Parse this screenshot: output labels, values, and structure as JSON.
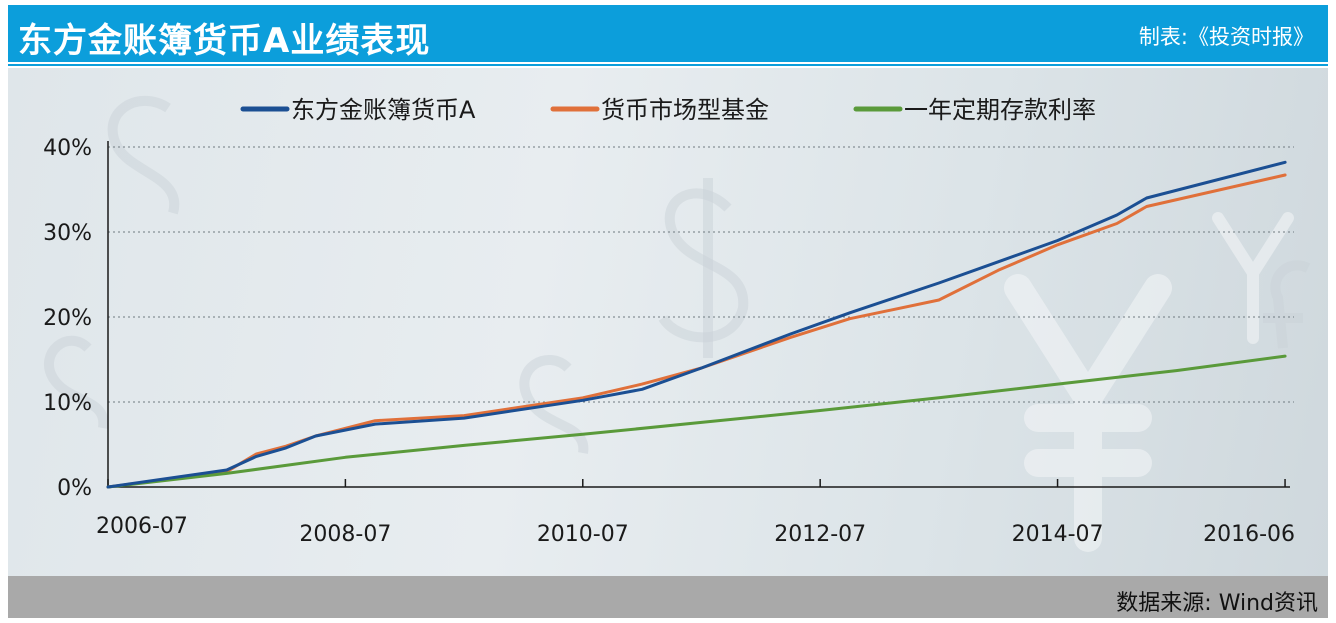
{
  "header": {
    "title": "东方金账簿货币A业绩表现",
    "credit": "制表:《投资时报》"
  },
  "footer": {
    "source": "数据来源: Wind资讯"
  },
  "colors": {
    "header_bg": "#0c9edb",
    "footer_bg": "#a9a9a9",
    "series_fund": "#1b4f93",
    "series_mmf": "#e0703a",
    "series_deposit": "#5a9a3a"
  },
  "chart_data": {
    "type": "line",
    "title": "东方金账簿货币A业绩表现",
    "xlabel": "",
    "ylabel": "",
    "x_tick_labels": [
      "2006-07",
      "2008-07",
      "2010-07",
      "2012-07",
      "2014-07",
      "2016-06"
    ],
    "y_tick_labels": [
      "0%",
      "10%",
      "20%",
      "30%",
      "40%"
    ],
    "ylim": [
      0,
      40
    ],
    "grid": "horizontal dotted",
    "legend_position": "top",
    "series": [
      {
        "name": "东方金账簿货币A",
        "color": "#1b4f93",
        "points": [
          [
            "2006-07",
            0.0
          ],
          [
            "2007-07",
            2.0
          ],
          [
            "2007-10",
            3.6
          ],
          [
            "2008-01",
            4.6
          ],
          [
            "2008-04",
            6.0
          ],
          [
            "2008-10",
            7.4
          ],
          [
            "2009-07",
            8.1
          ],
          [
            "2010-07",
            10.2
          ],
          [
            "2011-01",
            11.5
          ],
          [
            "2011-07",
            14.0
          ],
          [
            "2012-04",
            18.0
          ],
          [
            "2012-10",
            20.5
          ],
          [
            "2013-07",
            24.0
          ],
          [
            "2014-01",
            26.5
          ],
          [
            "2014-07",
            29.0
          ],
          [
            "2015-01",
            32.0
          ],
          [
            "2015-04",
            34.0
          ],
          [
            "2016-06",
            38.2
          ]
        ]
      },
      {
        "name": "货币市场型基金",
        "color": "#e0703a",
        "points": [
          [
            "2006-07",
            0.0
          ],
          [
            "2007-07",
            1.8
          ],
          [
            "2007-10",
            3.9
          ],
          [
            "2008-01",
            4.8
          ],
          [
            "2008-04",
            6.0
          ],
          [
            "2008-10",
            7.8
          ],
          [
            "2009-07",
            8.4
          ],
          [
            "2010-07",
            10.5
          ],
          [
            "2011-01",
            12.1
          ],
          [
            "2011-07",
            14.0
          ],
          [
            "2012-04",
            17.6
          ],
          [
            "2012-10",
            19.8
          ],
          [
            "2013-07",
            22.0
          ],
          [
            "2014-01",
            25.5
          ],
          [
            "2014-07",
            28.5
          ],
          [
            "2015-01",
            31.0
          ],
          [
            "2015-04",
            33.0
          ],
          [
            "2016-06",
            36.7
          ]
        ]
      },
      {
        "name": "一年定期存款利率",
        "color": "#5a9a3a",
        "points": [
          [
            "2006-07",
            0.0
          ],
          [
            "2007-07",
            1.6
          ],
          [
            "2008-07",
            3.5
          ],
          [
            "2009-07",
            4.9
          ],
          [
            "2010-07",
            6.2
          ],
          [
            "2011-07",
            7.6
          ],
          [
            "2012-07",
            9.0
          ],
          [
            "2013-07",
            10.5
          ],
          [
            "2014-07",
            12.1
          ],
          [
            "2015-07",
            13.7
          ],
          [
            "2016-06",
            15.4
          ]
        ]
      }
    ]
  }
}
